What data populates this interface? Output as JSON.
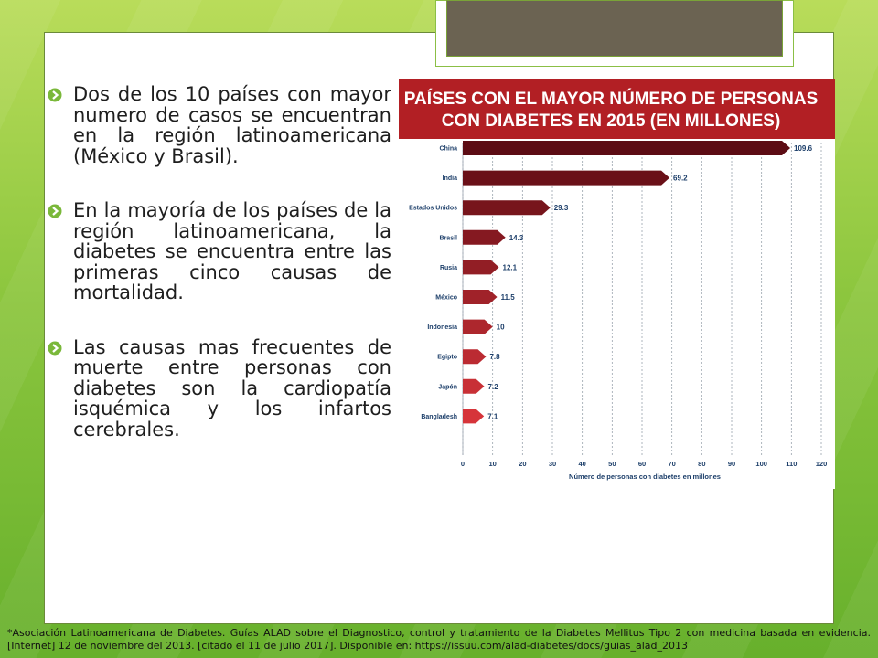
{
  "bullets": [
    "Dos de los 10 países con mayor numero de casos se encuentran en la región latinoamericana (México y Brasil).",
    "En la mayoría de los países de la región latinoamericana, la diabetes se encuentra entre las primeras cinco causas de mortalidad.",
    "Las causas mas frecuentes de muerte entre personas con diabetes son la cardiopatía isquémica y los infartos cerebrales."
  ],
  "footnote": "*Asociación Latinoamericana de Diabetes. Guías ALAD sobre el Diagnostico, control y tratamiento de la Diabetes Mellitus Tipo 2 con medicina basada en evidencia. [Internet] 12 de noviembre del 2013. [citado el 11 de julio 2017]. Disponible en: https://issuu.com/alad-diabetes/docs/guias_alad_2013",
  "colors": {
    "accent_green": "#7ab83a",
    "banner_red": "#b21f24",
    "bar_dark": "#5c0c14",
    "bar_light": "#d6343a"
  },
  "chart_data": {
    "type": "bar",
    "orientation": "horizontal",
    "title_line1": "PAÍSES CON EL MAYOR NÚMERO DE PERSONAS",
    "title_line2": "CON DIABETES EN 2015 (EN MILLONES)",
    "xlabel": "Número de personas con diabetes en millones",
    "xlim": [
      0,
      120
    ],
    "xticks": [
      0,
      10,
      20,
      30,
      40,
      50,
      60,
      70,
      80,
      90,
      100,
      110,
      120
    ],
    "grid": true,
    "categories": [
      "China",
      "India",
      "Estados Unidos",
      "Brasil",
      "Rusia",
      "México",
      "Indonesia",
      "Egipto",
      "Japón",
      "Bangladesh"
    ],
    "values": [
      109.6,
      69.2,
      29.3,
      14.3,
      12.1,
      11.5,
      10,
      7.8,
      7.2,
      7.1
    ],
    "value_labels": [
      "109.6",
      "69.2",
      "29.3",
      "14.3",
      "12.1",
      "11.5",
      "10",
      "7.8",
      "7.2",
      "7.1"
    ]
  }
}
